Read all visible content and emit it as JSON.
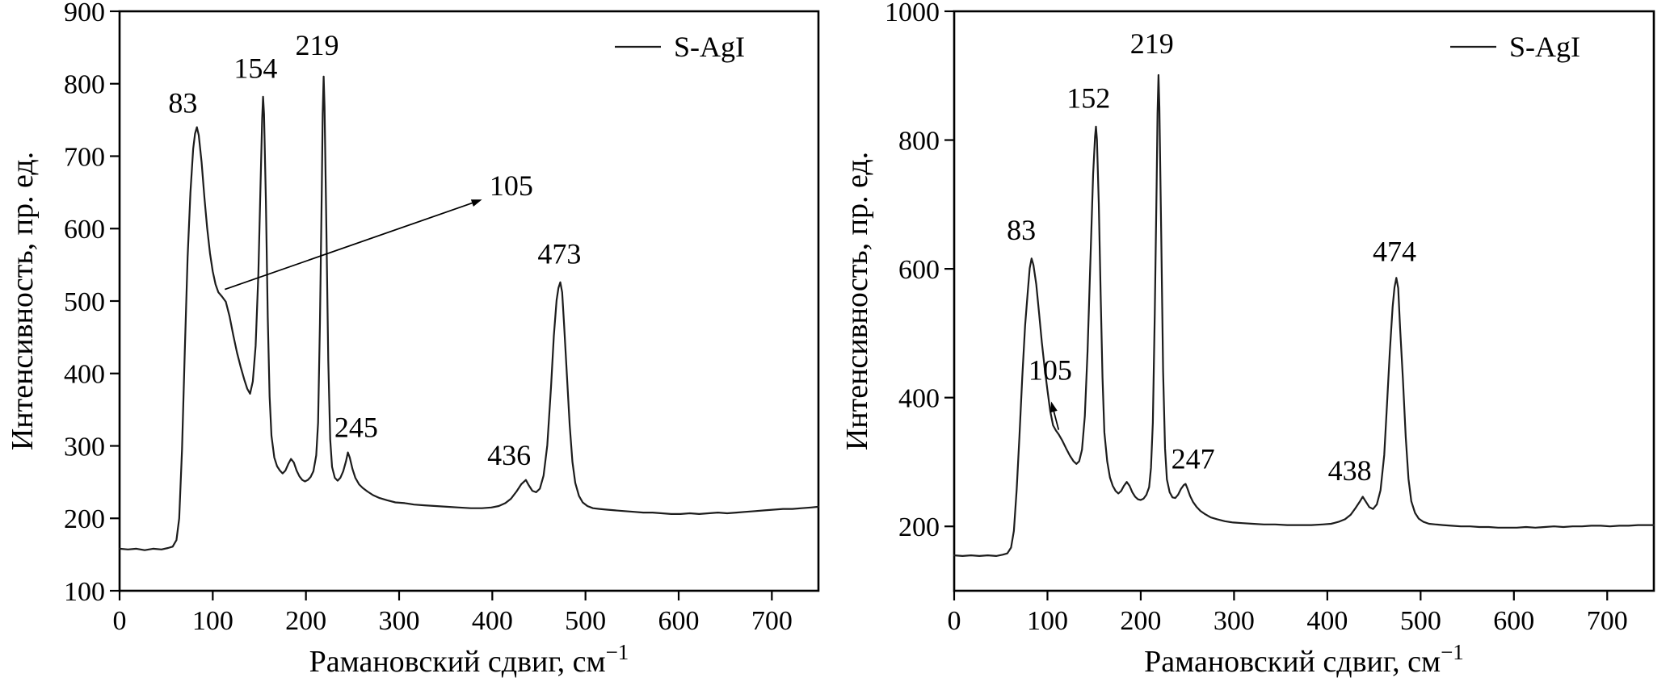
{
  "page": {
    "background": "#ffffff",
    "text_color": "#000000"
  },
  "chart_data": [
    {
      "id": "left",
      "type": "line",
      "title": "",
      "xlabel": "Рамановский сдвиг, см",
      "xlabel_sup": "−1",
      "ylabel": "Интенсивность, пр. ед.",
      "legend": "S-AgI",
      "xlim": [
        0,
        750
      ],
      "ylim": [
        100,
        900
      ],
      "xticks": [
        0,
        100,
        200,
        300,
        400,
        500,
        600,
        700
      ],
      "yticks": [
        100,
        200,
        300,
        400,
        500,
        600,
        700,
        800,
        900
      ],
      "grid": false,
      "legend_position": "top-right",
      "line_color": "#1c1c1c",
      "axis_color": "#000000",
      "peaks_cm1": [
        83,
        105,
        154,
        219,
        245,
        436,
        473
      ],
      "peak_labels": [
        {
          "label": "83",
          "x": 68,
          "y": 760
        },
        {
          "label": "154",
          "x": 146,
          "y": 808
        },
        {
          "label": "219",
          "x": 212,
          "y": 840
        },
        {
          "label": "245",
          "x": 254,
          "y": 312
        },
        {
          "label": "436",
          "x": 418,
          "y": 274
        },
        {
          "label": "473",
          "x": 472,
          "y": 552
        }
      ],
      "annotations": [
        {
          "label": "105",
          "text_x": 397,
          "text_y": 646,
          "anchor": "start",
          "arrow_from": [
            113,
            516
          ],
          "arrow_to": [
            389,
            640
          ]
        }
      ],
      "points": [
        [
          0,
          158
        ],
        [
          9,
          157
        ],
        [
          18,
          158
        ],
        [
          27,
          156
        ],
        [
          36,
          158
        ],
        [
          45,
          157
        ],
        [
          52,
          159
        ],
        [
          57,
          161
        ],
        [
          61,
          170
        ],
        [
          64,
          200
        ],
        [
          67,
          295
        ],
        [
          70,
          430
        ],
        [
          73,
          560
        ],
        [
          76,
          650
        ],
        [
          79,
          710
        ],
        [
          81,
          731
        ],
        [
          83,
          740
        ],
        [
          85,
          729
        ],
        [
          88,
          692
        ],
        [
          91,
          643
        ],
        [
          94,
          601
        ],
        [
          97,
          566
        ],
        [
          100,
          541
        ],
        [
          103,
          523
        ],
        [
          106,
          512
        ],
        [
          110,
          506
        ],
        [
          114,
          499
        ],
        [
          118,
          479
        ],
        [
          122,
          453
        ],
        [
          126,
          429
        ],
        [
          130,
          409
        ],
        [
          134,
          391
        ],
        [
          137,
          379
        ],
        [
          140,
          372
        ],
        [
          143,
          389
        ],
        [
          146,
          438
        ],
        [
          149,
          538
        ],
        [
          151,
          648
        ],
        [
          153,
          752
        ],
        [
          154,
          782
        ],
        [
          155,
          758
        ],
        [
          157,
          638
        ],
        [
          159,
          478
        ],
        [
          161,
          368
        ],
        [
          163,
          314
        ],
        [
          166,
          284
        ],
        [
          169,
          272
        ],
        [
          172,
          266
        ],
        [
          175,
          262
        ],
        [
          178,
          266
        ],
        [
          181,
          275
        ],
        [
          184,
          282
        ],
        [
          187,
          277
        ],
        [
          190,
          266
        ],
        [
          193,
          258
        ],
        [
          196,
          253
        ],
        [
          199,
          251
        ],
        [
          202,
          253
        ],
        [
          205,
          257
        ],
        [
          208,
          265
        ],
        [
          211,
          287
        ],
        [
          213,
          332
        ],
        [
          215,
          470
        ],
        [
          217,
          655
        ],
        [
          218,
          758
        ],
        [
          219,
          810
        ],
        [
          220,
          768
        ],
        [
          222,
          598
        ],
        [
          224,
          418
        ],
        [
          226,
          309
        ],
        [
          228,
          271
        ],
        [
          231,
          256
        ],
        [
          234,
          252
        ],
        [
          237,
          256
        ],
        [
          240,
          265
        ],
        [
          243,
          279
        ],
        [
          245,
          291
        ],
        [
          247,
          284
        ],
        [
          250,
          268
        ],
        [
          253,
          256
        ],
        [
          257,
          247
        ],
        [
          261,
          242
        ],
        [
          266,
          237
        ],
        [
          272,
          232
        ],
        [
          279,
          228
        ],
        [
          287,
          225
        ],
        [
          296,
          222
        ],
        [
          306,
          221
        ],
        [
          316,
          219
        ],
        [
          327,
          218
        ],
        [
          339,
          217
        ],
        [
          351,
          216
        ],
        [
          364,
          215
        ],
        [
          377,
          214
        ],
        [
          389,
          214
        ],
        [
          399,
          215
        ],
        [
          407,
          217
        ],
        [
          414,
          221
        ],
        [
          420,
          227
        ],
        [
          426,
          237
        ],
        [
          431,
          247
        ],
        [
          436,
          253
        ],
        [
          439,
          246
        ],
        [
          443,
          238
        ],
        [
          447,
          236
        ],
        [
          451,
          241
        ],
        [
          455,
          259
        ],
        [
          459,
          301
        ],
        [
          463,
          381
        ],
        [
          466,
          452
        ],
        [
          469,
          501
        ],
        [
          471,
          518
        ],
        [
          473,
          526
        ],
        [
          475,
          512
        ],
        [
          477,
          469
        ],
        [
          480,
          399
        ],
        [
          483,
          329
        ],
        [
          486,
          278
        ],
        [
          489,
          249
        ],
        [
          493,
          231
        ],
        [
          497,
          222
        ],
        [
          502,
          217
        ],
        [
          508,
          214
        ],
        [
          515,
          213
        ],
        [
          523,
          212
        ],
        [
          532,
          211
        ],
        [
          542,
          210
        ],
        [
          552,
          209
        ],
        [
          562,
          208
        ],
        [
          572,
          208
        ],
        [
          582,
          207
        ],
        [
          592,
          206
        ],
        [
          602,
          206
        ],
        [
          612,
          207
        ],
        [
          622,
          206
        ],
        [
          632,
          207
        ],
        [
          642,
          208
        ],
        [
          652,
          207
        ],
        [
          662,
          208
        ],
        [
          672,
          209
        ],
        [
          682,
          210
        ],
        [
          692,
          211
        ],
        [
          702,
          212
        ],
        [
          712,
          213
        ],
        [
          722,
          213
        ],
        [
          732,
          214
        ],
        [
          742,
          215
        ],
        [
          750,
          216
        ]
      ]
    },
    {
      "id": "right",
      "type": "line",
      "title": "",
      "xlabel": "Рамановский сдвиг, см",
      "xlabel_sup": "−1",
      "ylabel": "Интенсивность, пр. ед.",
      "legend": "S-AgI",
      "xlim": [
        0,
        750
      ],
      "ylim": [
        100,
        1000
      ],
      "xticks": [
        0,
        100,
        200,
        300,
        400,
        500,
        600,
        700
      ],
      "yticks": [
        200,
        400,
        600,
        800,
        1000
      ],
      "grid": false,
      "legend_position": "top-right",
      "line_color": "#1c1c1c",
      "axis_color": "#000000",
      "peaks_cm1": [
        83,
        105,
        152,
        219,
        247,
        438,
        474
      ],
      "peak_labels": [
        {
          "label": "83",
          "x": 72,
          "y": 645
        },
        {
          "label": "152",
          "x": 144,
          "y": 850
        },
        {
          "label": "219",
          "x": 212,
          "y": 935
        },
        {
          "label": "247",
          "x": 256,
          "y": 290
        },
        {
          "label": "438",
          "x": 424,
          "y": 272
        },
        {
          "label": "474",
          "x": 472,
          "y": 612
        }
      ],
      "annotations": [
        {
          "label": "105",
          "text_x": 103,
          "text_y": 428,
          "anchor": "middle",
          "arrow_from": [
            112,
            350
          ],
          "arrow_to": [
            104,
            394
          ]
        }
      ],
      "points": [
        [
          0,
          155
        ],
        [
          9,
          154
        ],
        [
          18,
          155
        ],
        [
          27,
          154
        ],
        [
          36,
          155
        ],
        [
          45,
          154
        ],
        [
          52,
          156
        ],
        [
          57,
          158
        ],
        [
          61,
          167
        ],
        [
          64,
          193
        ],
        [
          67,
          258
        ],
        [
          70,
          340
        ],
        [
          73,
          432
        ],
        [
          76,
          512
        ],
        [
          79,
          566
        ],
        [
          81,
          601
        ],
        [
          83,
          616
        ],
        [
          85,
          606
        ],
        [
          88,
          576
        ],
        [
          91,
          531
        ],
        [
          94,
          486
        ],
        [
          97,
          446
        ],
        [
          100,
          411
        ],
        [
          103,
          379
        ],
        [
          106,
          357
        ],
        [
          109,
          349
        ],
        [
          112,
          343
        ],
        [
          116,
          333
        ],
        [
          120,
          321
        ],
        [
          124,
          310
        ],
        [
          128,
          301
        ],
        [
          131,
          297
        ],
        [
          134,
          301
        ],
        [
          137,
          319
        ],
        [
          140,
          371
        ],
        [
          143,
          472
        ],
        [
          146,
          612
        ],
        [
          149,
          747
        ],
        [
          151,
          806
        ],
        [
          152,
          821
        ],
        [
          153,
          801
        ],
        [
          155,
          701
        ],
        [
          157,
          561
        ],
        [
          159,
          431
        ],
        [
          161,
          346
        ],
        [
          164,
          301
        ],
        [
          167,
          276
        ],
        [
          170,
          263
        ],
        [
          173,
          255
        ],
        [
          176,
          251
        ],
        [
          179,
          255
        ],
        [
          182,
          263
        ],
        [
          185,
          269
        ],
        [
          188,
          263
        ],
        [
          191,
          253
        ],
        [
          194,
          246
        ],
        [
          197,
          242
        ],
        [
          200,
          241
        ],
        [
          203,
          243
        ],
        [
          206,
          249
        ],
        [
          209,
          261
        ],
        [
          211,
          291
        ],
        [
          213,
          361
        ],
        [
          215,
          531
        ],
        [
          217,
          731
        ],
        [
          218,
          841
        ],
        [
          219,
          901
        ],
        [
          220,
          851
        ],
        [
          222,
          651
        ],
        [
          224,
          441
        ],
        [
          226,
          321
        ],
        [
          228,
          273
        ],
        [
          231,
          253
        ],
        [
          234,
          245
        ],
        [
          237,
          244
        ],
        [
          240,
          249
        ],
        [
          243,
          258
        ],
        [
          246,
          264
        ],
        [
          248,
          266
        ],
        [
          250,
          259
        ],
        [
          253,
          247
        ],
        [
          256,
          238
        ],
        [
          260,
          230
        ],
        [
          264,
          224
        ],
        [
          269,
          219
        ],
        [
          275,
          214
        ],
        [
          282,
          211
        ],
        [
          290,
          208
        ],
        [
          299,
          206
        ],
        [
          309,
          205
        ],
        [
          320,
          204
        ],
        [
          332,
          203
        ],
        [
          344,
          203
        ],
        [
          357,
          202
        ],
        [
          370,
          202
        ],
        [
          383,
          202
        ],
        [
          395,
          203
        ],
        [
          404,
          204
        ],
        [
          412,
          207
        ],
        [
          419,
          211
        ],
        [
          425,
          218
        ],
        [
          430,
          228
        ],
        [
          435,
          239
        ],
        [
          438,
          246
        ],
        [
          441,
          239
        ],
        [
          445,
          230
        ],
        [
          449,
          227
        ],
        [
          453,
          234
        ],
        [
          457,
          256
        ],
        [
          461,
          311
        ],
        [
          464,
          391
        ],
        [
          467,
          471
        ],
        [
          470,
          541
        ],
        [
          472,
          571
        ],
        [
          474,
          586
        ],
        [
          476,
          570
        ],
        [
          478,
          509
        ],
        [
          481,
          429
        ],
        [
          484,
          339
        ],
        [
          487,
          274
        ],
        [
          490,
          239
        ],
        [
          494,
          221
        ],
        [
          498,
          212
        ],
        [
          503,
          207
        ],
        [
          509,
          204
        ],
        [
          516,
          203
        ],
        [
          524,
          202
        ],
        [
          533,
          201
        ],
        [
          543,
          200
        ],
        [
          553,
          200
        ],
        [
          563,
          199
        ],
        [
          573,
          199
        ],
        [
          583,
          198
        ],
        [
          593,
          198
        ],
        [
          603,
          198
        ],
        [
          613,
          199
        ],
        [
          623,
          198
        ],
        [
          633,
          199
        ],
        [
          643,
          200
        ],
        [
          653,
          199
        ],
        [
          663,
          200
        ],
        [
          673,
          200
        ],
        [
          683,
          201
        ],
        [
          693,
          201
        ],
        [
          703,
          200
        ],
        [
          713,
          201
        ],
        [
          723,
          201
        ],
        [
          733,
          202
        ],
        [
          743,
          202
        ],
        [
          750,
          202
        ]
      ]
    }
  ]
}
